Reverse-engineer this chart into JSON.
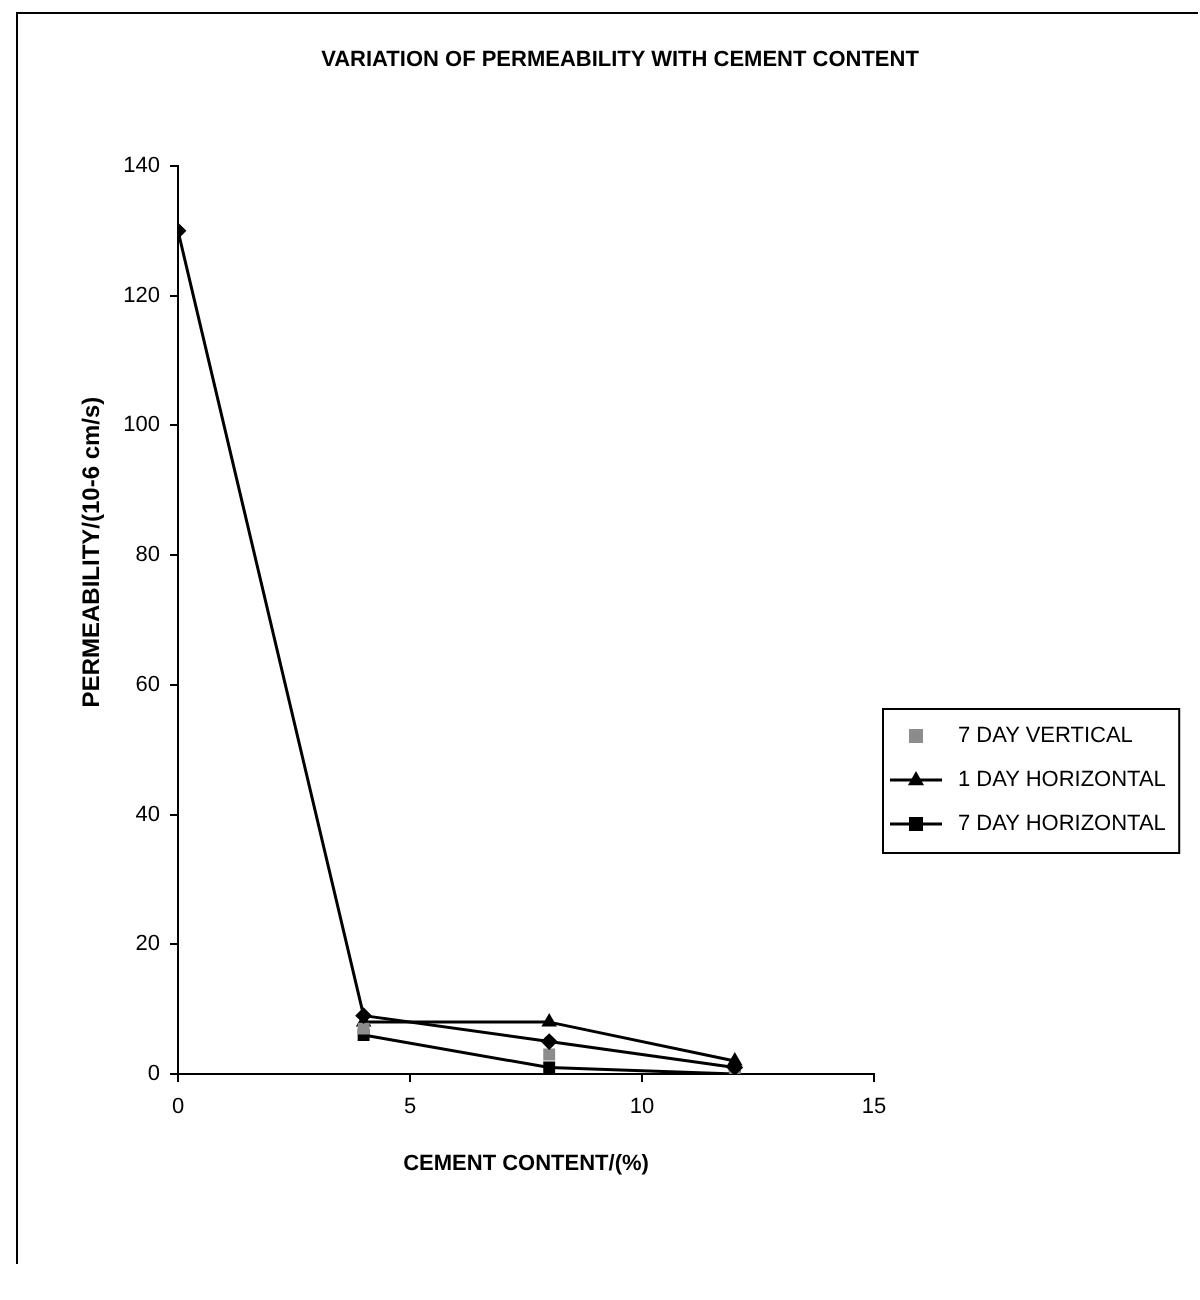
{
  "chart_data": {
    "type": "line",
    "title": "VARIATION OF PERMEABILITY WITH CEMENT CONTENT",
    "xlabel": "CEMENT CONTENT/(%)",
    "ylabel": "PERMEABILITY/(10-6 cm/s)",
    "xlim": [
      0,
      15
    ],
    "xticks": [
      0,
      5,
      10,
      15
    ],
    "ylim": [
      0,
      140
    ],
    "yticks": [
      0,
      20,
      40,
      60,
      80,
      100,
      120,
      140
    ],
    "legend": "right",
    "series": [
      {
        "color": "#000000",
        "marker": "diamond",
        "x": [
          0,
          4,
          8,
          12
        ],
        "values": [
          130,
          9,
          5,
          1
        ]
      },
      {
        "name": "7 DAY VERTICAL",
        "type": "scatter",
        "color": "#8c8c8c",
        "marker": "square",
        "x": [
          4,
          8,
          12
        ],
        "values": [
          7,
          3,
          0
        ]
      },
      {
        "name": "1 DAY HORIZONTAL",
        "color": "#000000",
        "marker": "triangle",
        "x": [
          4,
          8,
          12
        ],
        "values": [
          8,
          8,
          2
        ]
      },
      {
        "name": "7 DAY HORIZONTAL",
        "color": "#000000",
        "marker": "square",
        "x": [
          4,
          8,
          12
        ],
        "values": [
          6,
          1,
          0
        ]
      }
    ]
  }
}
